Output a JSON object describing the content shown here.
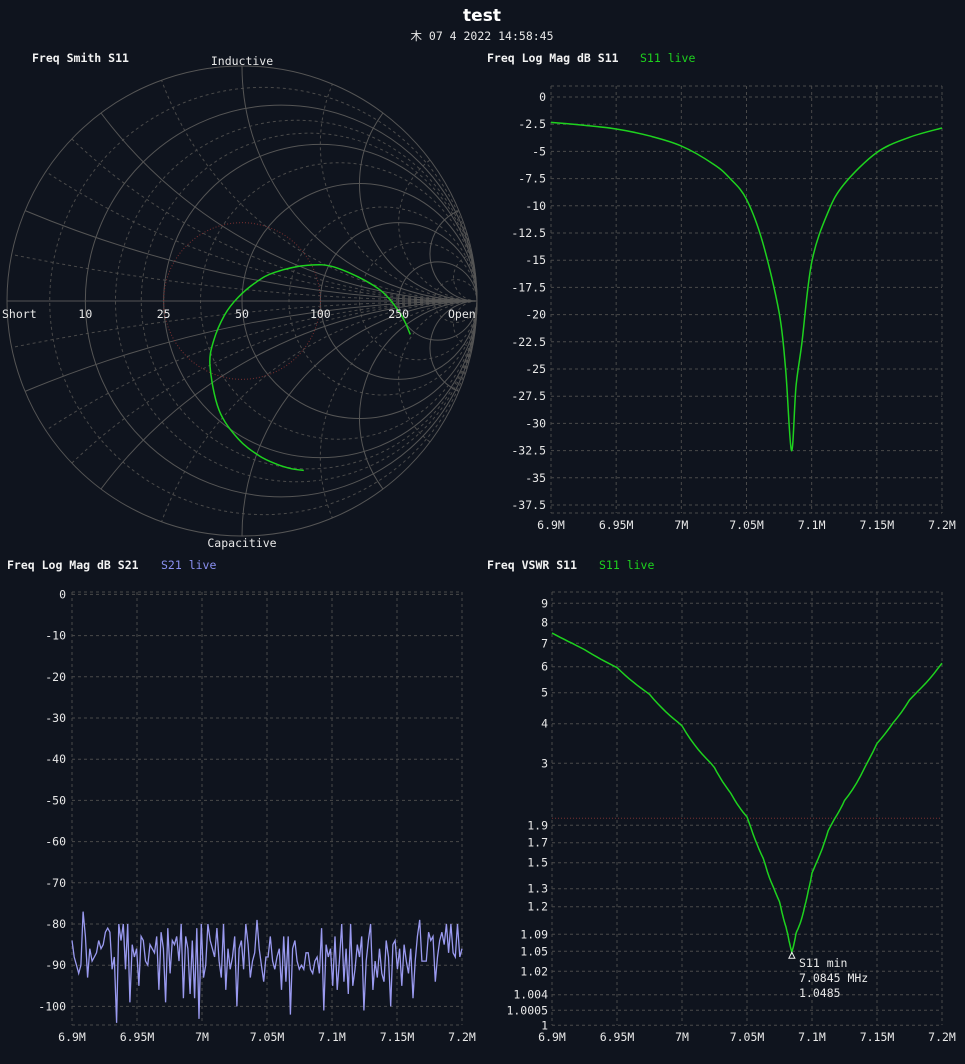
{
  "header": {
    "title": "test",
    "timestamp": "木 07 4 2022 14:58:45"
  },
  "colors": {
    "background": "#0f141e",
    "s11": "#1ed21e",
    "s21": "#9a9af0",
    "grid": "#4a4a4a",
    "swr_limit": "#7a3030"
  },
  "panels": {
    "smith": {
      "title": "Freq Smith S11",
      "top_label": "Inductive",
      "bottom_label": "Capacitive",
      "short_label": "Short",
      "open_label": "Open",
      "r_labels": [
        "10",
        "25",
        "50",
        "100",
        "250"
      ]
    },
    "logmag_s11": {
      "title": "Freq Log Mag dB S11",
      "legend": "S11 live"
    },
    "logmag_s21": {
      "title": "Freq Log Mag dB S21",
      "legend": "S21 live"
    },
    "vswr": {
      "title": "Freq VSWR S11",
      "legend": "S11 live",
      "marker": {
        "label": "S11 min",
        "freq": "7.0845 MHz",
        "value": "1.0485"
      }
    }
  },
  "chart_data": [
    {
      "type": "smith",
      "title": "Freq Smith S11",
      "reference_impedance_ohm": 50,
      "swr_circle": 2,
      "series": [
        {
          "name": "S11 live",
          "freq_mhz": [
            6.9,
            6.925,
            6.95,
            6.975,
            7.0,
            7.025,
            7.05,
            7.0625,
            7.075,
            7.0845,
            7.0925,
            7.1,
            7.1125,
            7.125,
            7.15,
            7.175,
            7.2
          ],
          "gamma_re": [
            0.263,
            0.212,
            0.149,
            0.072,
            -0.016,
            -0.098,
            -0.136,
            -0.12,
            -0.073,
            -0.017,
            0.06,
            0.14,
            0.281,
            0.404,
            0.581,
            0.674,
            0.716
          ],
          "gamma_im": [
            -0.721,
            -0.714,
            -0.695,
            -0.658,
            -0.587,
            -0.464,
            -0.277,
            -0.167,
            -0.058,
            0.015,
            0.08,
            0.122,
            0.152,
            0.141,
            0.052,
            -0.054,
            -0.142
          ]
        }
      ]
    },
    {
      "type": "line",
      "title": "Freq Log Mag dB S11",
      "xlim": [
        6.9,
        7.2
      ],
      "ylim": [
        -37.5,
        0
      ],
      "grid": true,
      "x_ticks": [
        "6.9M",
        "6.95M",
        "7M",
        "7.05M",
        "7.1M",
        "7.15M",
        "7.2M"
      ],
      "y_ticks": [
        "0",
        "-2.5",
        "-5",
        "-7.5",
        "-10",
        "-12.5",
        "-15",
        "-17.5",
        "-20",
        "-22.5",
        "-25",
        "-27.5",
        "-30",
        "-32.5",
        "-35",
        "-37.5"
      ],
      "series": [
        {
          "name": "S11 live",
          "x": [
            6.9,
            6.925,
            6.95,
            6.975,
            7.0,
            7.025,
            7.0375,
            7.05,
            7.0625,
            7.075,
            7.08,
            7.0845,
            7.088,
            7.0925,
            7.1,
            7.1125,
            7.125,
            7.15,
            7.175,
            7.2
          ],
          "y": [
            -2.33,
            -2.6,
            -2.94,
            -3.56,
            -4.5,
            -6.2,
            -7.5,
            -9.4,
            -13.4,
            -19.8,
            -25,
            -32.5,
            -26.6,
            -22.6,
            -15.2,
            -10.6,
            -8.0,
            -5.1,
            -3.7,
            -2.85
          ]
        }
      ]
    },
    {
      "type": "line",
      "title": "Freq Log Mag dB S21",
      "xlim": [
        6.9,
        7.2
      ],
      "ylim": [
        -105,
        0
      ],
      "grid": true,
      "x_ticks": [
        "6.9M",
        "6.95M",
        "7M",
        "7.05M",
        "7.1M",
        "7.15M",
        "7.2M"
      ],
      "y_ticks": [
        "0",
        "-10",
        "-20",
        "-30",
        "-40",
        "-50",
        "-60",
        "-70",
        "-80",
        "-90",
        "-100"
      ],
      "series": [
        {
          "name": "S21 live",
          "y": [
            -84,
            -88,
            -90,
            -92,
            -90,
            -77,
            -83,
            -93,
            -86,
            -89,
            -88,
            -87,
            -84,
            -86,
            -85,
            -82,
            -81,
            -82,
            -91,
            -88,
            -104,
            -80,
            -84,
            -80,
            -91,
            -80,
            -99,
            -85,
            -88,
            -86,
            -95,
            -83,
            -84,
            -89,
            -90,
            -85,
            -86,
            -87,
            -83,
            -96,
            -82,
            -86,
            -99,
            -81,
            -92,
            -84,
            -85,
            -83,
            -89,
            -80,
            -98,
            -83,
            -86,
            -97,
            -84,
            -98,
            -81,
            -103,
            -80,
            -93,
            -90,
            -80,
            -84,
            -86,
            -88,
            -81,
            -89,
            -93,
            -80,
            -96,
            -86,
            -91,
            -88,
            -83,
            -100,
            -86,
            -84,
            -91,
            -80,
            -85,
            -93,
            -89,
            -87,
            -79,
            -86,
            -90,
            -94,
            -88,
            -88,
            -83,
            -89,
            -91,
            -88,
            -86,
            -96,
            -83,
            -94,
            -83,
            -102,
            -86,
            -84,
            -89,
            -91,
            -90,
            -91,
            -87,
            -87,
            -91,
            -92,
            -89,
            -88,
            -92,
            -81,
            -101,
            -85,
            -88,
            -86,
            -95,
            -83,
            -96,
            -89,
            -80,
            -94,
            -86,
            -97,
            -80,
            -95,
            -91,
            -85,
            -88,
            -83,
            -101,
            -89,
            -84,
            -80,
            -96,
            -89,
            -93,
            -86,
            -92,
            -94,
            -84,
            -88,
            -100,
            -85,
            -84,
            -91,
            -86,
            -95,
            -85,
            -89,
            -92,
            -86,
            -98,
            -89,
            -83,
            -79,
            -89,
            -89,
            -89,
            -82,
            -84,
            -83,
            -94,
            -88,
            -84,
            -82,
            -85,
            -80,
            -87,
            -80,
            -87,
            -88,
            -80,
            -88,
            -86
          ]
        }
      ]
    },
    {
      "type": "line",
      "title": "Freq VSWR S11",
      "xlim": [
        6.9,
        7.2
      ],
      "ylim": [
        1,
        10
      ],
      "grid": true,
      "swr_limit": 2,
      "x_ticks": [
        "6.9M",
        "6.95M",
        "7M",
        "7.05M",
        "7.1M",
        "7.15M",
        "7.2M"
      ],
      "y_ticks": [
        "9",
        "8",
        "7",
        "6",
        "5",
        "4",
        "3",
        "1.9",
        "1.7",
        "1.5",
        "1.3",
        "1.2",
        "1.09",
        "1.05",
        "1.02",
        "1.004",
        "1.0005",
        "1"
      ],
      "series": [
        {
          "name": "S11 live",
          "derived_from": "S11 log mag"
        }
      ],
      "marker": {
        "label": "S11 min",
        "x_mhz": 7.0845,
        "y": 1.0485
      }
    }
  ]
}
